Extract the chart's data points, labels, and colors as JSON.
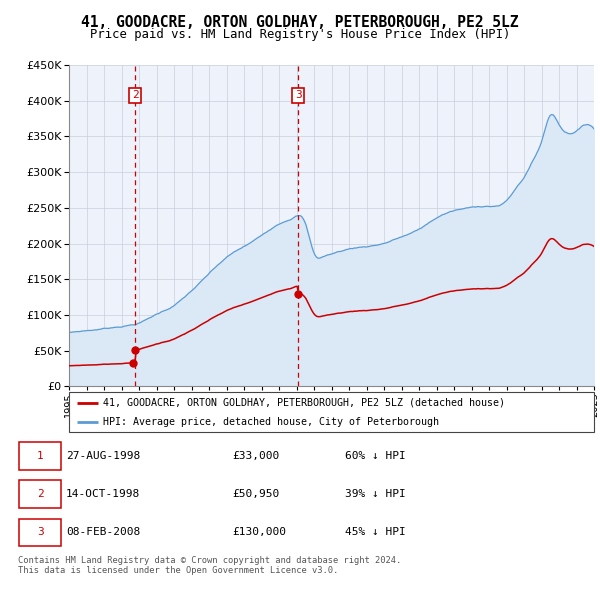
{
  "title": "41, GOODACRE, ORTON GOLDHAY, PETERBOROUGH, PE2 5LZ",
  "subtitle": "Price paid vs. HM Land Registry's House Price Index (HPI)",
  "table_rows": [
    {
      "num": 1,
      "date": "27-AUG-1998",
      "price": "£33,000",
      "hpi": "60% ↓ HPI"
    },
    {
      "num": 2,
      "date": "14-OCT-1998",
      "price": "£50,950",
      "hpi": "39% ↓ HPI"
    },
    {
      "num": 3,
      "date": "08-FEB-2008",
      "price": "£130,000",
      "hpi": "45% ↓ HPI"
    }
  ],
  "legend_line1": "41, GOODACRE, ORTON GOLDHAY, PETERBOROUGH, PE2 5LZ (detached house)",
  "legend_line2": "HPI: Average price, detached house, City of Peterborough",
  "footer": "Contains HM Land Registry data © Crown copyright and database right 2024.\nThis data is licensed under the Open Government Licence v3.0.",
  "xlim": [
    1995,
    2025
  ],
  "ylim": [
    0,
    450000
  ],
  "yticks": [
    0,
    50000,
    100000,
    150000,
    200000,
    250000,
    300000,
    350000,
    400000,
    450000
  ],
  "tx1_x": 1998.646,
  "tx1_y": 33000,
  "tx2_x": 1998.79,
  "tx2_y": 50950,
  "tx3_x": 2008.103,
  "tx3_y": 130000,
  "red_line_color": "#cc0000",
  "blue_line_color": "#5b9bd5",
  "blue_fill_color": "#dbe9f7",
  "bg_color": "#eef3fb",
  "grid_color": "#c8d0dc",
  "vline_color": "#cc0000",
  "box_color": "#cc0000"
}
